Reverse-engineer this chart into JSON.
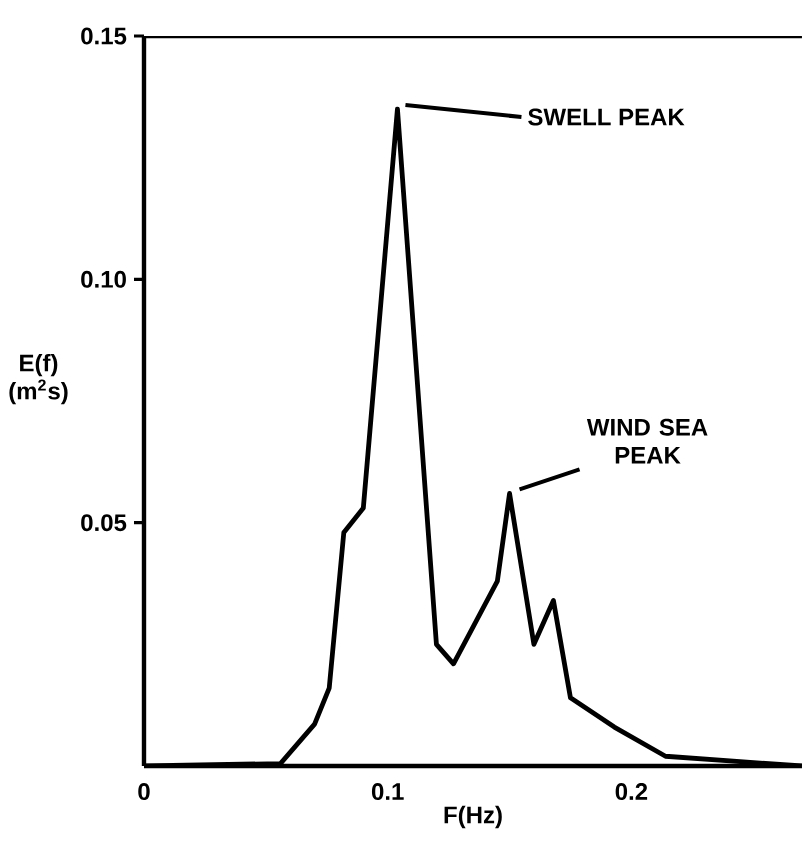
{
  "chart_data": {
    "type": "line",
    "xlabel": "F(Hz)",
    "ylabel": "E(f) (m$^{2}$s)",
    "x": [
      0,
      0.056,
      0.07,
      0.076,
      0.082,
      0.09,
      0.104,
      0.12,
      0.127,
      0.145,
      0.15,
      0.16,
      0.168,
      0.175,
      0.193,
      0.214,
      0.27
    ],
    "series": [
      {
        "color": "#000000",
        "values": [
          0,
          0.0005,
          0.0086,
          0.016,
          0.048,
          0.053,
          0.135,
          0.025,
          0.021,
          0.038,
          0.056,
          0.025,
          0.034,
          0.014,
          0.008,
          0.002,
          0
        ]
      }
    ],
    "xlim": [
      0,
      0.27
    ],
    "ylim": [
      0,
      0.15
    ],
    "xticks": [
      0,
      0.1,
      0.2
    ],
    "yticks": [
      0.05,
      {
        "value": 0.1,
        "label": "0.10"
      },
      0.15
    ],
    "annotations": [
      {
        "text": "SWELL PEAK",
        "x": 0.104,
        "y": 0.135
      },
      {
        "text": "WIND SEA PEAK",
        "x": 0.15,
        "y": 0.056
      }
    ],
    "grid": false
  }
}
